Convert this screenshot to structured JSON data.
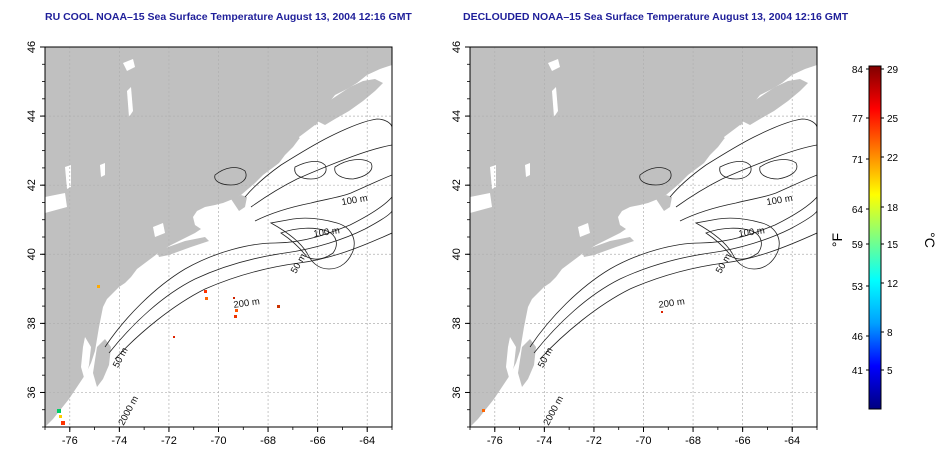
{
  "panels": [
    {
      "title": "RU COOL NOAA–15 Sea Surface Temperature August 13, 2004 12:16 GMT",
      "x_ticks": [
        "-76",
        "-74",
        "-72",
        "-70",
        "-68",
        "-66",
        "-64"
      ],
      "y_ticks": [
        "46",
        "44",
        "42",
        "40",
        "38",
        "36"
      ],
      "contour_labels": [
        "100 m",
        "100 m",
        "50 m",
        "200 m",
        "50 m",
        "2000 m"
      ]
    },
    {
      "title": "DECLOUDED NOAA–15 Sea Surface Temperature August 13, 2004 12:16 GMT",
      "x_ticks": [
        "-76",
        "-74",
        "-72",
        "-70",
        "-68",
        "-66",
        "-64"
      ],
      "y_ticks": [
        "46",
        "44",
        "42",
        "40",
        "38",
        "36"
      ],
      "contour_labels": [
        "100 m",
        "100 m",
        "50 m",
        "200 m",
        "50 m",
        "2000 m"
      ]
    }
  ],
  "map_extent": {
    "lon_min": -77,
    "lon_max": -63,
    "lat_min": 35,
    "lat_max": 46
  },
  "colorbar": {
    "f_label": "°F",
    "c_label": "°C",
    "f_ticks": [
      "84",
      "77",
      "71",
      "64",
      "59",
      "53",
      "46",
      "41"
    ],
    "c_ticks": [
      "29",
      "25",
      "22",
      "18",
      "15",
      "12",
      "8",
      "5"
    ],
    "colors": [
      "#000080",
      "#0000ff",
      "#00a0ff",
      "#00ffff",
      "#80ff80",
      "#ffff00",
      "#ff8000",
      "#ff0000",
      "#800000"
    ]
  },
  "colors": {
    "land": "#c0c0c0",
    "ocean": "#ffffff",
    "title": "#1f1f9a",
    "grid": "#b0b0b0"
  }
}
